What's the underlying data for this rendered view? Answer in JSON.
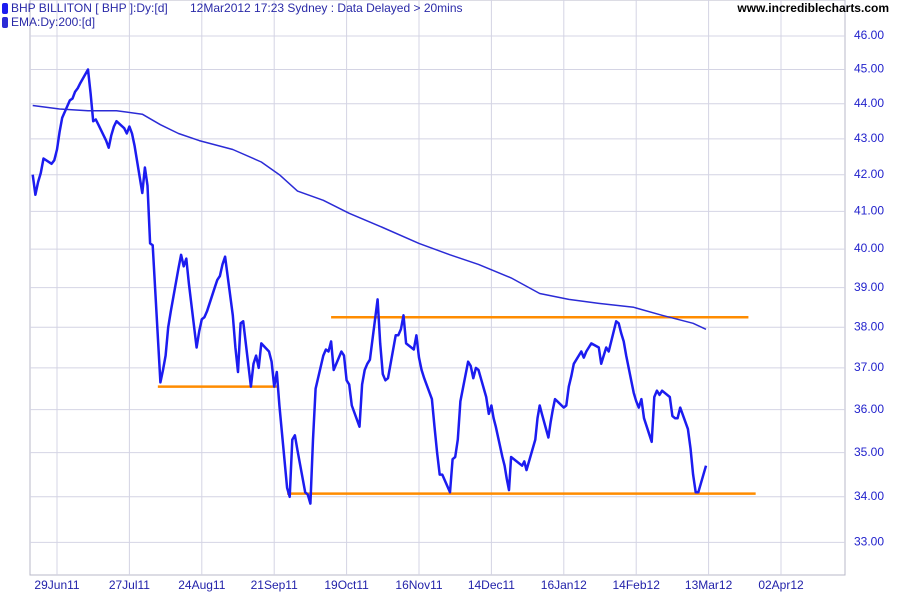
{
  "chart_data": {
    "type": "line",
    "title": "BHP BILLITON [ BHP ]:Dy:[d]",
    "subtitle": "12Mar2012 17:23 Sydney : Data Delayed > 20mins",
    "source": "www.incrediblecharts.com",
    "yscale": "log",
    "grid": true,
    "xlim": [
      "2011-06-19",
      "2012-04-20"
    ],
    "xticks": [
      {
        "value": "2011-06-29",
        "label": "29Jun11"
      },
      {
        "value": "2011-07-27",
        "label": "27Jul11"
      },
      {
        "value": "2011-08-24",
        "label": "24Aug11"
      },
      {
        "value": "2011-09-21",
        "label": "21Sep11"
      },
      {
        "value": "2011-10-19",
        "label": "19Oct11"
      },
      {
        "value": "2011-11-16",
        "label": "16Nov11"
      },
      {
        "value": "2011-12-14",
        "label": "14Dec11"
      },
      {
        "value": "2012-01-16",
        "label": "16Jan12"
      },
      {
        "value": "2012-02-14",
        "label": "14Feb12"
      },
      {
        "value": "2012-03-13",
        "label": "13Mar12"
      },
      {
        "value": "2012-04-02",
        "label": "02Apr12"
      }
    ],
    "ylim": [
      32.3,
      47.1
    ],
    "yticks": [
      {
        "value": 33,
        "label": "33.00"
      },
      {
        "value": 34,
        "label": "34.00"
      },
      {
        "value": 35,
        "label": "35.00"
      },
      {
        "value": 36,
        "label": "36.00"
      },
      {
        "value": 37,
        "label": "37.00"
      },
      {
        "value": 38,
        "label": "38.00"
      },
      {
        "value": 39,
        "label": "39.00"
      },
      {
        "value": 40,
        "label": "40.00"
      },
      {
        "value": 41,
        "label": "41.00"
      },
      {
        "value": 42,
        "label": "42.00"
      },
      {
        "value": 43,
        "label": "43.00"
      },
      {
        "value": 44,
        "label": "44.00"
      },
      {
        "value": 45,
        "label": "45.00"
      },
      {
        "value": 46,
        "label": "46.00"
      }
    ],
    "series": [
      {
        "name": "BHP BILLITON [ BHP ]:Dy:[d]",
        "color": "#1c1cf0",
        "width": 2.5,
        "x": [
          "2011-06-20",
          "2011-06-21",
          "2011-06-22",
          "2011-06-23",
          "2011-06-24",
          "2011-06-27",
          "2011-06-28",
          "2011-06-29",
          "2011-06-30",
          "2011-07-01",
          "2011-07-04",
          "2011-07-05",
          "2011-07-06",
          "2011-07-07",
          "2011-07-08",
          "2011-07-11",
          "2011-07-12",
          "2011-07-13",
          "2011-07-14",
          "2011-07-15",
          "2011-07-18",
          "2011-07-19",
          "2011-07-20",
          "2011-07-21",
          "2011-07-22",
          "2011-07-25",
          "2011-07-26",
          "2011-07-27",
          "2011-07-28",
          "2011-07-29",
          "2011-08-01",
          "2011-08-02",
          "2011-08-03",
          "2011-08-04",
          "2011-08-05",
          "2011-08-08",
          "2011-08-09",
          "2011-08-10",
          "2011-08-11",
          "2011-08-12",
          "2011-08-15",
          "2011-08-16",
          "2011-08-17",
          "2011-08-18",
          "2011-08-19",
          "2011-08-22",
          "2011-08-23",
          "2011-08-24",
          "2011-08-25",
          "2011-08-26",
          "2011-08-29",
          "2011-08-30",
          "2011-08-31",
          "2011-09-01",
          "2011-09-02",
          "2011-09-05",
          "2011-09-06",
          "2011-09-07",
          "2011-09-08",
          "2011-09-09",
          "2011-09-12",
          "2011-09-13",
          "2011-09-14",
          "2011-09-15",
          "2011-09-16",
          "2011-09-19",
          "2011-09-20",
          "2011-09-21",
          "2011-09-22",
          "2011-09-23",
          "2011-09-26",
          "2011-09-27",
          "2011-09-28",
          "2011-09-29",
          "2011-09-30",
          "2011-10-03",
          "2011-10-04",
          "2011-10-05",
          "2011-10-06",
          "2011-10-07",
          "2011-10-10",
          "2011-10-11",
          "2011-10-12",
          "2011-10-13",
          "2011-10-14",
          "2011-10-17",
          "2011-10-18",
          "2011-10-19",
          "2011-10-20",
          "2011-10-21",
          "2011-10-24",
          "2011-10-25",
          "2011-10-26",
          "2011-10-27",
          "2011-10-28",
          "2011-10-31",
          "2011-11-01",
          "2011-11-02",
          "2011-11-03",
          "2011-11-04",
          "2011-11-07",
          "2011-11-08",
          "2011-11-09",
          "2011-11-10",
          "2011-11-11",
          "2011-11-14",
          "2011-11-15",
          "2011-11-16",
          "2011-11-17",
          "2011-11-18",
          "2011-11-21",
          "2011-11-22",
          "2011-11-23",
          "2011-11-24",
          "2011-11-25",
          "2011-11-28",
          "2011-11-29",
          "2011-11-30",
          "2011-12-01",
          "2011-12-02",
          "2011-12-05",
          "2011-12-06",
          "2011-12-07",
          "2011-12-08",
          "2011-12-09",
          "2011-12-12",
          "2011-12-13",
          "2011-12-14",
          "2011-12-15",
          "2011-12-16",
          "2011-12-19",
          "2011-12-20",
          "2011-12-21",
          "2011-12-22",
          "2011-12-23",
          "2011-12-28",
          "2011-12-29",
          "2011-12-30",
          "2012-01-03",
          "2012-01-04",
          "2012-01-05",
          "2012-01-06",
          "2012-01-09",
          "2012-01-10",
          "2012-01-11",
          "2012-01-12",
          "2012-01-13",
          "2012-01-16",
          "2012-01-17",
          "2012-01-18",
          "2012-01-19",
          "2012-01-20",
          "2012-01-23",
          "2012-01-24",
          "2012-01-25",
          "2012-01-27",
          "2012-01-30",
          "2012-01-31",
          "2012-02-01",
          "2012-02-02",
          "2012-02-03",
          "2012-02-06",
          "2012-02-07",
          "2012-02-08",
          "2012-02-09",
          "2012-02-10",
          "2012-02-13",
          "2012-02-14",
          "2012-02-15",
          "2012-02-16",
          "2012-02-17",
          "2012-02-20",
          "2012-02-21",
          "2012-02-22",
          "2012-02-23",
          "2012-02-24",
          "2012-02-27",
          "2012-02-28",
          "2012-02-29",
          "2012-03-01",
          "2012-03-02",
          "2012-03-05",
          "2012-03-06",
          "2012-03-07",
          "2012-03-08",
          "2012-03-09",
          "2012-03-12"
        ],
        "values": [
          42.0,
          41.45,
          41.8,
          42.05,
          42.45,
          42.3,
          42.4,
          42.7,
          43.2,
          43.6,
          44.1,
          44.15,
          44.35,
          44.45,
          44.6,
          45.0,
          44.3,
          43.5,
          43.55,
          43.4,
          42.95,
          42.75,
          43.1,
          43.35,
          43.5,
          43.3,
          43.15,
          43.35,
          43.15,
          42.8,
          41.5,
          42.2,
          41.7,
          40.15,
          40.1,
          36.65,
          36.95,
          37.3,
          38.0,
          38.4,
          39.5,
          39.85,
          39.55,
          39.75,
          39.1,
          37.5,
          37.9,
          38.2,
          38.25,
          38.4,
          39.0,
          39.2,
          39.3,
          39.6,
          39.8,
          38.3,
          37.5,
          36.9,
          38.1,
          38.15,
          36.55,
          37.1,
          37.3,
          37.0,
          37.6,
          37.4,
          37.15,
          36.55,
          36.9,
          36.1,
          34.2,
          34.0,
          35.3,
          35.4,
          35.05,
          34.1,
          34.05,
          33.85,
          35.3,
          36.5,
          37.3,
          37.45,
          37.4,
          37.65,
          36.95,
          37.4,
          37.3,
          36.7,
          36.6,
          36.1,
          35.6,
          36.6,
          36.95,
          37.1,
          37.2,
          38.7,
          37.6,
          36.85,
          36.7,
          36.75,
          37.8,
          37.8,
          37.95,
          38.3,
          37.6,
          37.45,
          37.8,
          37.25,
          36.95,
          36.75,
          36.25,
          35.6,
          35.0,
          34.5,
          34.5,
          34.1,
          34.85,
          34.9,
          35.3,
          36.2,
          37.15,
          37.05,
          36.75,
          37.0,
          36.95,
          36.3,
          35.9,
          36.1,
          35.8,
          35.6,
          34.9,
          34.7,
          34.4,
          34.15,
          34.9,
          34.7,
          34.8,
          34.6,
          35.3,
          35.8,
          36.1,
          35.9,
          35.35,
          35.7,
          36.0,
          36.25,
          36.2,
          36.05,
          36.1,
          36.55,
          36.8,
          37.1,
          37.4,
          37.25,
          37.4,
          37.6,
          37.5,
          37.1,
          37.3,
          37.5,
          37.4,
          38.15,
          38.1,
          37.85,
          37.65,
          37.3,
          36.4,
          36.2,
          36.05,
          36.25,
          35.8,
          35.25,
          36.3,
          36.45,
          36.35,
          36.45,
          36.3,
          35.85,
          35.8,
          35.8,
          36.05,
          35.55,
          35.1,
          34.5,
          34.1,
          34.1,
          34.7
        ]
      },
      {
        "name": "EMA:Dy:200:[d]",
        "color": "#2b2bd6",
        "width": 1.5,
        "x": [
          "2011-06-20",
          "2011-06-30",
          "2011-07-11",
          "2011-07-22",
          "2011-08-01",
          "2011-08-08",
          "2011-08-15",
          "2011-08-23",
          "2011-09-05",
          "2011-09-16",
          "2011-09-23",
          "2011-09-30",
          "2011-10-10",
          "2011-10-20",
          "2011-11-01",
          "2011-11-16",
          "2011-11-28",
          "2011-12-09",
          "2011-12-23",
          "2012-01-05",
          "2012-01-18",
          "2012-01-30",
          "2012-02-13",
          "2012-02-24",
          "2012-03-07",
          "2012-03-12"
        ],
        "values": [
          43.95,
          43.85,
          43.8,
          43.8,
          43.7,
          43.4,
          43.15,
          42.95,
          42.7,
          42.35,
          42.0,
          41.55,
          41.3,
          40.95,
          40.6,
          40.15,
          39.85,
          39.6,
          39.25,
          38.85,
          38.7,
          38.6,
          38.5,
          38.3,
          38.1,
          37.95
        ]
      }
    ],
    "levels": [
      {
        "value": 38.25,
        "start": "2011-10-13",
        "end": "2012-03-24",
        "color": "#ff8c00"
      },
      {
        "value": 36.55,
        "start": "2011-08-07",
        "end": "2011-09-22",
        "color": "#ff8c00"
      },
      {
        "value": 34.07,
        "start": "2011-09-26",
        "end": "2012-03-26",
        "color": "#ff8c00"
      }
    ]
  }
}
